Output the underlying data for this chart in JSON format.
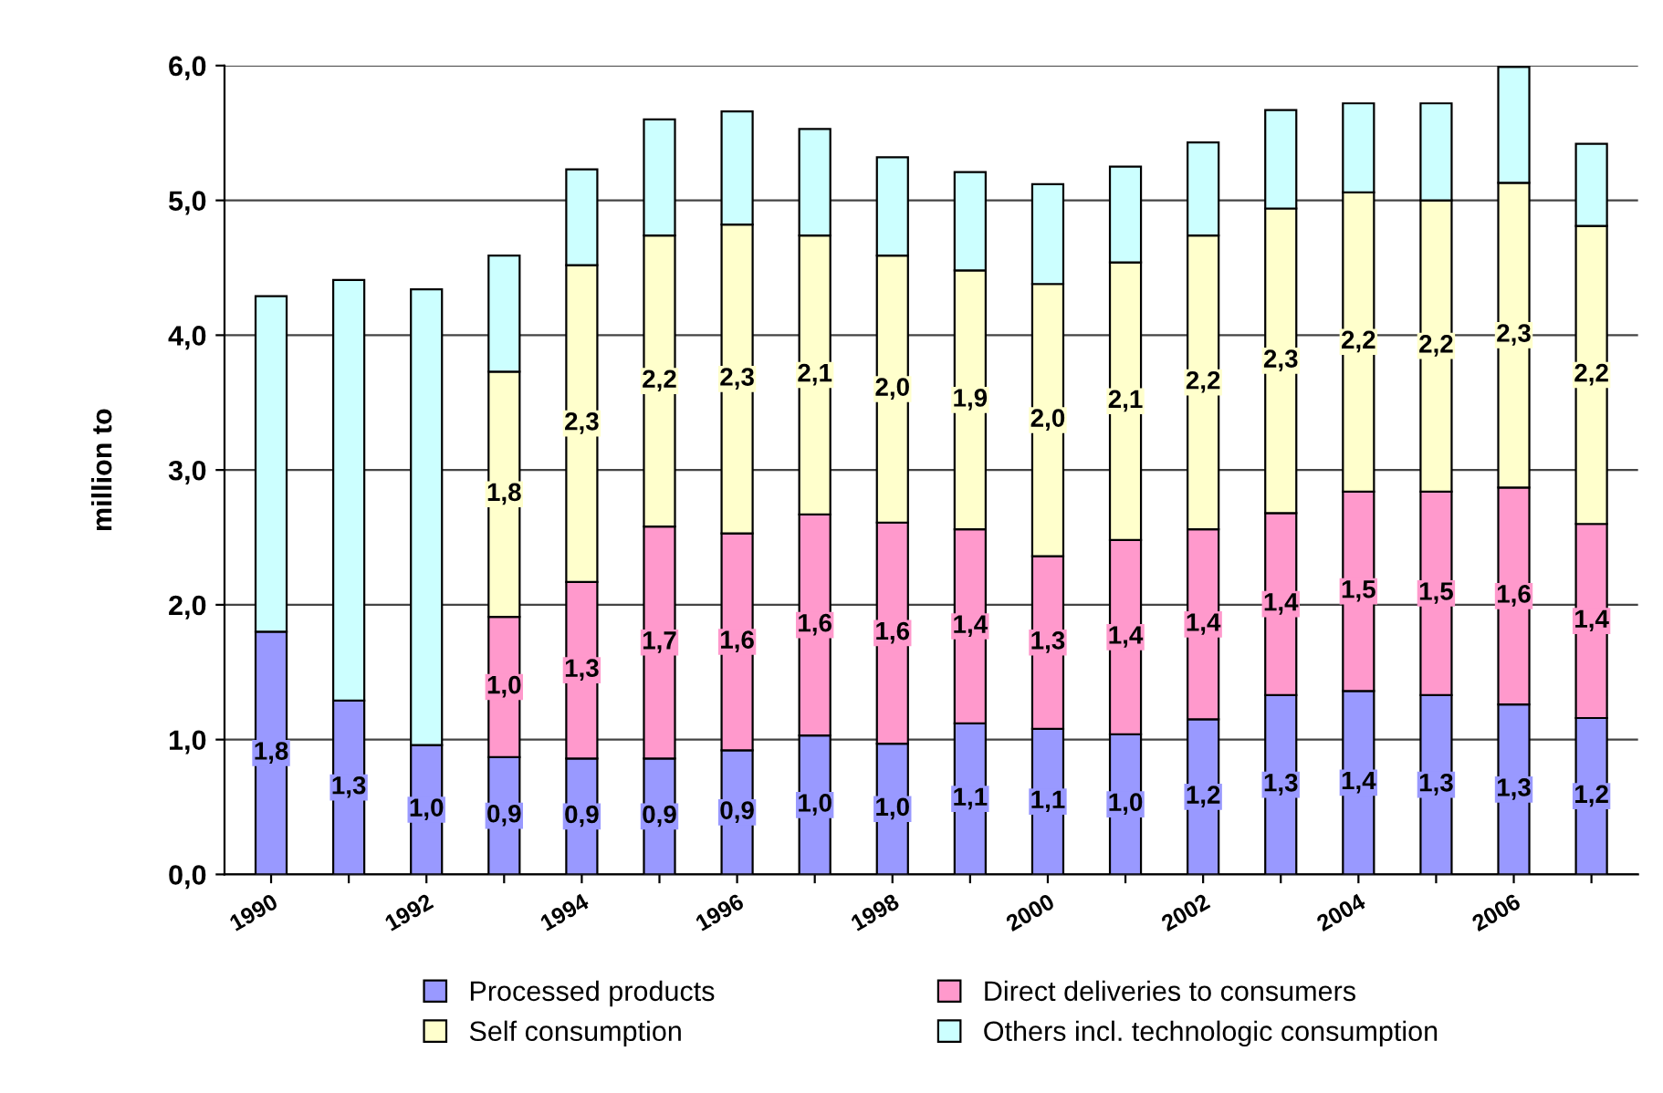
{
  "chart_data": {
    "type": "bar",
    "stacked": true,
    "ylabel": "million to",
    "categories": [
      "1990",
      null,
      "1992",
      null,
      "1994",
      null,
      "1996",
      null,
      "1998",
      null,
      "2000",
      null,
      "2002",
      null,
      "2004",
      null,
      "2006",
      null
    ],
    "series": [
      {
        "name": "Processed products",
        "color": "#9999ff",
        "values": [
          1.8,
          1.29,
          0.96,
          0.87,
          0.86,
          0.86,
          0.92,
          1.03,
          0.97,
          1.12,
          1.08,
          1.04,
          1.15,
          1.33,
          1.36,
          1.33,
          1.26,
          1.16
        ],
        "value_labels": [
          "1,8",
          "1,3",
          "1,0",
          "0,9",
          "0,9",
          "0,9",
          "0,9",
          "1,0",
          "1,0",
          "1,1",
          "1,1",
          "1,0",
          "1,2",
          "1,3",
          "1,4",
          "1,3",
          "1,3",
          "1,2"
        ]
      },
      {
        "name": "Direct deliveries to consumers",
        "color": "#ff99cc",
        "values": [
          null,
          null,
          null,
          1.04,
          1.31,
          1.72,
          1.61,
          1.64,
          1.64,
          1.44,
          1.28,
          1.44,
          1.41,
          1.35,
          1.48,
          1.51,
          1.61,
          1.44
        ],
        "value_labels": [
          null,
          null,
          null,
          "1,0",
          "1,3",
          "1,7",
          "1,6",
          "1,6",
          "1,6",
          "1,4",
          "1,3",
          "1,4",
          "1,4",
          "1,4",
          "1,5",
          "1,5",
          "1,6",
          "1,4"
        ]
      },
      {
        "name": "Self consumption",
        "color": "#ffffcc",
        "values": [
          null,
          null,
          null,
          1.82,
          2.35,
          2.16,
          2.29,
          2.07,
          1.98,
          1.92,
          2.02,
          2.06,
          2.18,
          2.26,
          2.22,
          2.16,
          2.26,
          2.21
        ],
        "value_labels": [
          null,
          null,
          null,
          "1,8",
          "2,3",
          "2,2",
          "2,3",
          "2,1",
          "2,0",
          "1,9",
          "2,0",
          "2,1",
          "2,2",
          "2,3",
          "2,2",
          "2,2",
          "2,3",
          "2,2"
        ]
      },
      {
        "name": "Others incl. technologic consumption",
        "color": "#ccffff",
        "values": [
          2.49,
          3.12,
          3.38,
          0.86,
          0.71,
          0.86,
          0.84,
          0.79,
          0.73,
          0.73,
          0.74,
          0.71,
          0.69,
          0.73,
          0.66,
          0.72,
          0.86,
          0.61
        ]
      }
    ],
    "ylim": [
      0,
      6
    ],
    "yticks": [
      {
        "value": 0,
        "label": "0,0"
      },
      {
        "value": 1,
        "label": "1,0"
      },
      {
        "value": 2,
        "label": "2,0"
      },
      {
        "value": 3,
        "label": "3,0"
      },
      {
        "value": 4,
        "label": "4,0"
      },
      {
        "value": 5,
        "label": "5,0"
      },
      {
        "value": 6,
        "label": "6,0"
      }
    ],
    "grid": "y",
    "legend": "bottom"
  }
}
